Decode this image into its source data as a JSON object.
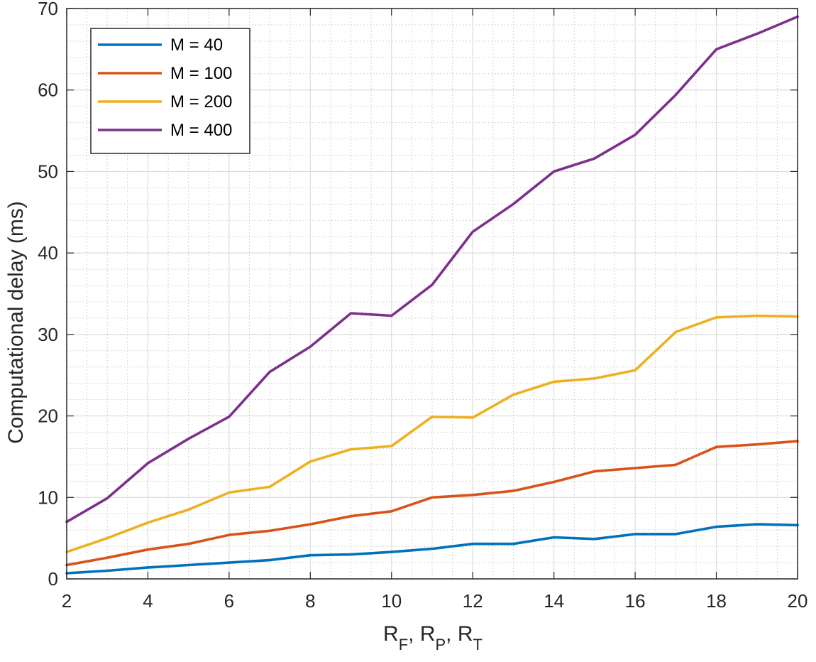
{
  "chart_data": {
    "type": "line",
    "xlabel": {
      "main": "R",
      "parts": [
        {
          "base": "R",
          "sub": "F",
          "sep": ", "
        },
        {
          "base": "R",
          "sub": "P",
          "sep": ", "
        },
        {
          "base": "R",
          "sub": "T",
          "sep": ""
        }
      ]
    },
    "ylabel": "Computational delay (ms)",
    "xlim": [
      2,
      20
    ],
    "ylim": [
      0,
      70
    ],
    "xticks": [
      2,
      4,
      6,
      8,
      10,
      12,
      14,
      16,
      18,
      20
    ],
    "yticks": [
      0,
      10,
      20,
      30,
      40,
      50,
      60,
      70
    ],
    "grid": true,
    "minor_grid": true,
    "legend_position": "top-left",
    "x": [
      2,
      3,
      4,
      5,
      6,
      7,
      8,
      9,
      10,
      11,
      12,
      13,
      14,
      15,
      16,
      17,
      18,
      19,
      20
    ],
    "series": [
      {
        "name": "M = 40",
        "color": "#0072BD",
        "values": [
          0.7,
          1.0,
          1.4,
          1.7,
          2.0,
          2.3,
          2.9,
          3.0,
          3.3,
          3.7,
          4.3,
          4.3,
          5.1,
          4.9,
          5.5,
          5.5,
          6.4,
          6.7,
          6.6
        ]
      },
      {
        "name": "M = 100",
        "color": "#D95319",
        "values": [
          1.7,
          2.6,
          3.6,
          4.3,
          5.4,
          5.9,
          6.7,
          7.7,
          8.3,
          10.0,
          10.3,
          10.8,
          11.9,
          13.2,
          13.6,
          14.0,
          16.2,
          16.5,
          16.9
        ]
      },
      {
        "name": "M = 200",
        "color": "#EDB120",
        "values": [
          3.3,
          5.0,
          6.9,
          8.5,
          10.6,
          11.3,
          14.4,
          15.9,
          16.3,
          19.9,
          19.8,
          22.6,
          24.2,
          24.6,
          25.6,
          30.3,
          32.1,
          32.3,
          32.2
        ]
      },
      {
        "name": "M = 400",
        "color": "#7E2F8E",
        "values": [
          7.0,
          9.9,
          14.2,
          17.2,
          19.9,
          25.4,
          28.5,
          32.6,
          32.3,
          36.1,
          42.6,
          46.0,
          50.0,
          51.6,
          54.5,
          59.4,
          65.0,
          66.9,
          69.0
        ]
      }
    ]
  }
}
